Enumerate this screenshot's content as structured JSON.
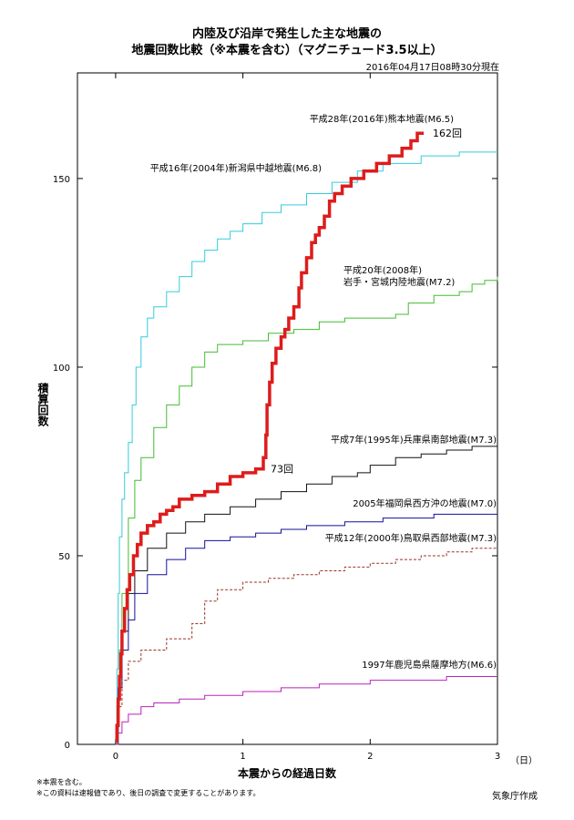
{
  "header": {
    "title_line1": "内陸及び沿岸で発生した主な地震の",
    "title_line2": "地震回数比較（※本震を含む）（マグニチュード3.5以上）",
    "timestamp": "2016年04月17日08時30分現在"
  },
  "footer": {
    "note1": "※本震を含む。",
    "note2": "※この資料は速報値であり、後日の調査で変更することがあります。",
    "source": "気象庁作成"
  },
  "chart_data": {
    "type": "line",
    "title": "内陸及び沿岸で発生した主な地震の地震回数比較（※本震を含む）（マグニチュード3.5以上）",
    "xlabel": "本震からの経過日数",
    "x_unit": "（日）",
    "ylabel": "積算回数",
    "xlim": [
      -0.3,
      3
    ],
    "ylim": [
      0,
      178
    ],
    "x_ticks": [
      0,
      1,
      2,
      3
    ],
    "y_ticks": [
      0,
      50,
      100,
      150
    ],
    "grid": false,
    "legend": "labels placed next to each series",
    "series": [
      {
        "name": "平成28年(2016年)熊本地震(M6.5)",
        "color": "#dd1c1c",
        "width": 3.5,
        "dash": "",
        "points": [
          [
            0,
            1
          ],
          [
            0.01,
            5
          ],
          [
            0.02,
            12
          ],
          [
            0.03,
            18
          ],
          [
            0.04,
            24
          ],
          [
            0.05,
            30
          ],
          [
            0.07,
            36
          ],
          [
            0.09,
            41
          ],
          [
            0.11,
            45
          ],
          [
            0.14,
            50
          ],
          [
            0.17,
            53
          ],
          [
            0.2,
            56
          ],
          [
            0.25,
            58
          ],
          [
            0.3,
            59
          ],
          [
            0.35,
            61
          ],
          [
            0.4,
            62
          ],
          [
            0.45,
            63
          ],
          [
            0.5,
            65
          ],
          [
            0.6,
            66
          ],
          [
            0.7,
            67
          ],
          [
            0.8,
            69
          ],
          [
            0.9,
            71
          ],
          [
            1.0,
            72
          ],
          [
            1.1,
            73
          ],
          [
            1.16,
            73
          ],
          [
            1.16,
            76
          ],
          [
            1.18,
            82
          ],
          [
            1.19,
            90
          ],
          [
            1.21,
            96
          ],
          [
            1.23,
            101
          ],
          [
            1.26,
            105
          ],
          [
            1.3,
            108
          ],
          [
            1.33,
            110
          ],
          [
            1.36,
            113
          ],
          [
            1.4,
            116
          ],
          [
            1.44,
            121
          ],
          [
            1.46,
            125
          ],
          [
            1.5,
            129
          ],
          [
            1.54,
            133
          ],
          [
            1.57,
            135
          ],
          [
            1.6,
            137
          ],
          [
            1.64,
            140
          ],
          [
            1.68,
            144
          ],
          [
            1.72,
            146
          ],
          [
            1.78,
            148
          ],
          [
            1.85,
            150
          ],
          [
            1.95,
            152
          ],
          [
            2.05,
            154
          ],
          [
            2.15,
            156
          ],
          [
            2.25,
            158
          ],
          [
            2.32,
            160
          ],
          [
            2.37,
            162
          ],
          [
            2.42,
            162
          ]
        ],
        "end_label": "162回"
      },
      {
        "name": "平成16年(2004年)新潟県中越地震(M6.8)",
        "color": "#33ccdd",
        "width": 1,
        "dash": "",
        "points": [
          [
            0,
            0
          ],
          [
            0.01,
            20
          ],
          [
            0.02,
            40
          ],
          [
            0.03,
            55
          ],
          [
            0.05,
            65
          ],
          [
            0.07,
            72
          ],
          [
            0.1,
            80
          ],
          [
            0.13,
            90
          ],
          [
            0.16,
            100
          ],
          [
            0.2,
            108
          ],
          [
            0.25,
            113
          ],
          [
            0.3,
            116
          ],
          [
            0.4,
            120
          ],
          [
            0.5,
            124
          ],
          [
            0.6,
            128
          ],
          [
            0.7,
            131
          ],
          [
            0.8,
            134
          ],
          [
            0.9,
            136
          ],
          [
            1.0,
            138
          ],
          [
            1.15,
            141
          ],
          [
            1.3,
            143
          ],
          [
            1.5,
            146
          ],
          [
            1.7,
            149
          ],
          [
            1.9,
            152
          ],
          [
            2.1,
            154
          ],
          [
            2.4,
            156
          ],
          [
            2.7,
            157
          ],
          [
            3.0,
            157
          ]
        ]
      },
      {
        "name": "平成20年(2008年)岩手・宮城内陸地震(M7.2)",
        "color": "#44bb33",
        "width": 1,
        "dash": "",
        "points": [
          [
            0,
            0
          ],
          [
            0.01,
            10
          ],
          [
            0.03,
            25
          ],
          [
            0.05,
            40
          ],
          [
            0.1,
            60
          ],
          [
            0.15,
            70
          ],
          [
            0.2,
            76
          ],
          [
            0.3,
            84
          ],
          [
            0.4,
            90
          ],
          [
            0.5,
            95
          ],
          [
            0.6,
            100
          ],
          [
            0.7,
            104
          ],
          [
            0.8,
            106
          ],
          [
            1.0,
            107
          ],
          [
            1.2,
            109
          ],
          [
            1.4,
            110
          ],
          [
            1.6,
            112
          ],
          [
            1.8,
            113
          ],
          [
            2.0,
            113
          ],
          [
            2.2,
            114
          ],
          [
            2.3,
            117
          ],
          [
            2.5,
            119
          ],
          [
            2.7,
            120
          ],
          [
            2.8,
            122
          ],
          [
            2.9,
            123
          ],
          [
            3.0,
            124
          ]
        ]
      },
      {
        "name": "平成7年(1995年)兵庫県南部地震(M7.3)",
        "color": "#111111",
        "width": 1,
        "dash": "",
        "points": [
          [
            0,
            0
          ],
          [
            0.02,
            15
          ],
          [
            0.05,
            30
          ],
          [
            0.1,
            40
          ],
          [
            0.15,
            46
          ],
          [
            0.25,
            52
          ],
          [
            0.4,
            56
          ],
          [
            0.55,
            59
          ],
          [
            0.7,
            61
          ],
          [
            0.9,
            63
          ],
          [
            1.1,
            65
          ],
          [
            1.3,
            67
          ],
          [
            1.5,
            69
          ],
          [
            1.7,
            71
          ],
          [
            1.9,
            72
          ],
          [
            2.0,
            74
          ],
          [
            2.2,
            76
          ],
          [
            2.4,
            77
          ],
          [
            2.6,
            78
          ],
          [
            2.8,
            79
          ],
          [
            3.0,
            79
          ]
        ]
      },
      {
        "name": "2005年福岡県西方沖の地震(M7.0)",
        "color": "#111199",
        "width": 1,
        "dash": "",
        "points": [
          [
            0,
            0
          ],
          [
            0.02,
            15
          ],
          [
            0.05,
            25
          ],
          [
            0.1,
            33
          ],
          [
            0.15,
            40
          ],
          [
            0.25,
            45
          ],
          [
            0.4,
            49
          ],
          [
            0.55,
            52
          ],
          [
            0.7,
            54
          ],
          [
            0.9,
            55
          ],
          [
            1.1,
            56
          ],
          [
            1.3,
            57
          ],
          [
            1.5,
            58
          ],
          [
            1.8,
            59
          ],
          [
            2.1,
            60
          ],
          [
            2.5,
            61
          ],
          [
            3.0,
            61
          ]
        ]
      },
      {
        "name": "平成12年(2000年)鳥取県西部地震(M7.3)",
        "color": "#993322",
        "width": 1,
        "dash": "3,2",
        "points": [
          [
            0,
            0
          ],
          [
            0.02,
            10
          ],
          [
            0.05,
            17
          ],
          [
            0.1,
            22
          ],
          [
            0.2,
            25
          ],
          [
            0.4,
            28
          ],
          [
            0.6,
            32
          ],
          [
            0.7,
            38
          ],
          [
            0.8,
            41
          ],
          [
            1.0,
            43
          ],
          [
            1.2,
            44
          ],
          [
            1.4,
            45
          ],
          [
            1.6,
            46
          ],
          [
            1.8,
            47
          ],
          [
            2.0,
            48
          ],
          [
            2.2,
            49
          ],
          [
            2.4,
            50
          ],
          [
            2.6,
            51
          ],
          [
            2.8,
            52
          ],
          [
            3.0,
            52
          ]
        ]
      },
      {
        "name": "1997年鹿児島県薩摩地方(M6.6)",
        "color": "#bb22bb",
        "width": 1,
        "dash": "",
        "points": [
          [
            0,
            0
          ],
          [
            0.02,
            3
          ],
          [
            0.05,
            6
          ],
          [
            0.1,
            8
          ],
          [
            0.2,
            10
          ],
          [
            0.3,
            11
          ],
          [
            0.5,
            12
          ],
          [
            0.7,
            13
          ],
          [
            1.0,
            14
          ],
          [
            1.3,
            15
          ],
          [
            1.6,
            16
          ],
          [
            2.0,
            17
          ],
          [
            2.3,
            17
          ],
          [
            2.6,
            18
          ],
          [
            3.0,
            18
          ]
        ]
      }
    ],
    "annotations": [
      {
        "text": "73回",
        "x": 1.16,
        "y": 73
      }
    ]
  }
}
